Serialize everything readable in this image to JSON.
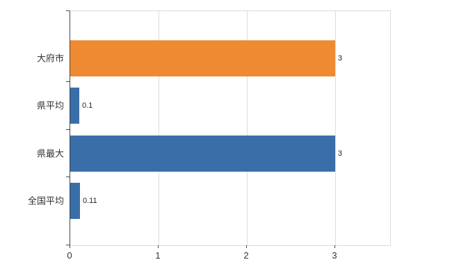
{
  "chart_data": {
    "type": "bar",
    "orientation": "horizontal",
    "title": "",
    "categories": [
      "大府市",
      "県平均",
      "県最大",
      "全国平均"
    ],
    "values": [
      3,
      0.1,
      3,
      0.11
    ],
    "value_labels": [
      "3",
      "0.1",
      "3",
      "0.11"
    ],
    "series": [
      {
        "name": "",
        "values": [
          3,
          0.1,
          3,
          0.11
        ]
      }
    ],
    "bar_colors": [
      "#ee8b32",
      "#3a6ea8",
      "#3a6ea8",
      "#3a6ea8"
    ],
    "x_ticks": [
      "0",
      "1",
      "2",
      "3"
    ],
    "x_tick_values": [
      0,
      1,
      2,
      3
    ],
    "xlim": [
      0,
      3.62
    ],
    "grid": true,
    "legend": "none",
    "xlabel": "",
    "ylabel": ""
  },
  "colors": {
    "background": "#ffffff",
    "grid": "#dddddd",
    "plot_border": "#d9d9d9",
    "axis": "#444444",
    "text": "#333333",
    "value_text": "#222222"
  }
}
